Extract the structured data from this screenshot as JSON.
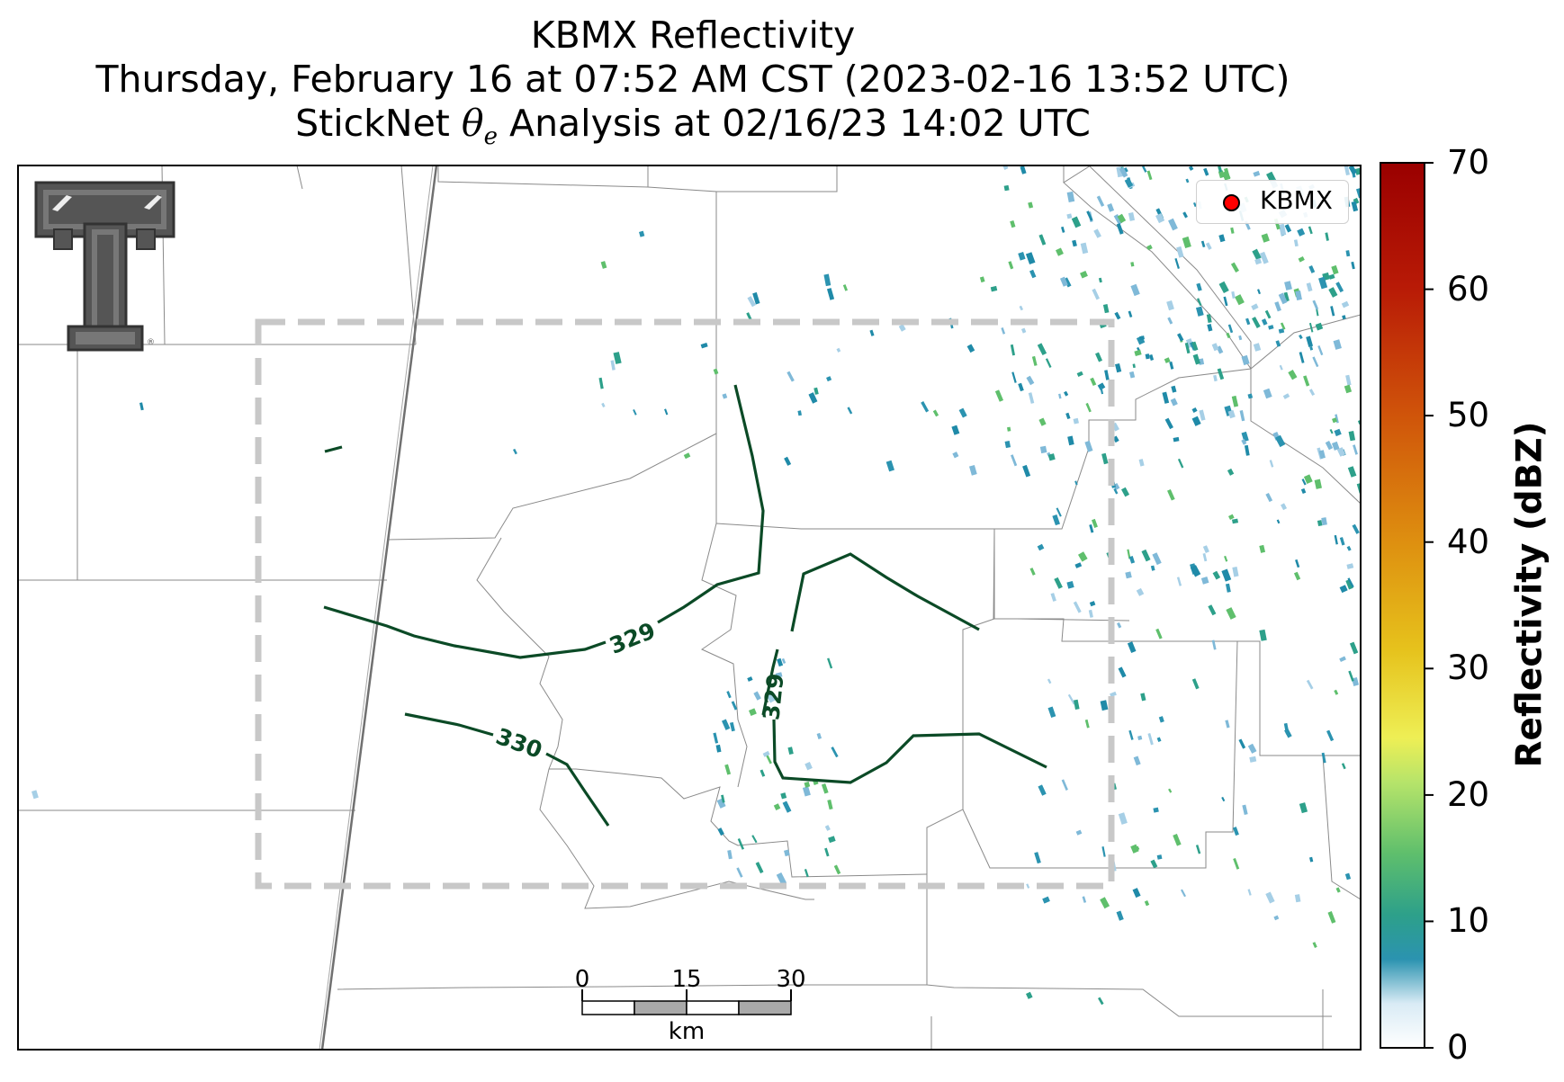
{
  "title": {
    "line1": "KBMX Reflectivity",
    "line2": "Thursday, February 16 at 07:52 AM CST (2023-02-16 13:52 UTC)",
    "line3_prefix": "StickNet ",
    "line3_symbol": "θ",
    "line3_subscript": "e",
    "line3_suffix": " Analysis at 02/16/23 14:02 UTC"
  },
  "legend": {
    "marker_label": "KBMX",
    "marker_color": "#ff0000"
  },
  "colorbar": {
    "label": "Reflectivity (dBZ)",
    "ticks": [
      "0",
      "10",
      "20",
      "30",
      "40",
      "50",
      "60",
      "70"
    ],
    "min": 0,
    "max": 70,
    "colors": [
      "#ffffff",
      "#a6cfe6",
      "#2b93b0",
      "#2da08a",
      "#5fbf6c",
      "#b6e46a",
      "#f2f04a",
      "#f0c32a",
      "#e08a14",
      "#cc4a0a",
      "#b00e06",
      "#9a0000"
    ]
  },
  "scale_bar": {
    "ticks": [
      "0",
      "15",
      "30"
    ],
    "unit": "km"
  },
  "contours": {
    "variable": "theta-e",
    "color": "#0b4a26",
    "labels": [
      {
        "value": "329",
        "contour": "western"
      },
      {
        "value": "329",
        "contour": "eastern"
      },
      {
        "value": "330",
        "contour": "southwestern"
      }
    ]
  },
  "analysis_box": {
    "style": "dashed",
    "color": "#c8c8c8"
  },
  "logo": {
    "name": "Texas Tech Double T"
  }
}
